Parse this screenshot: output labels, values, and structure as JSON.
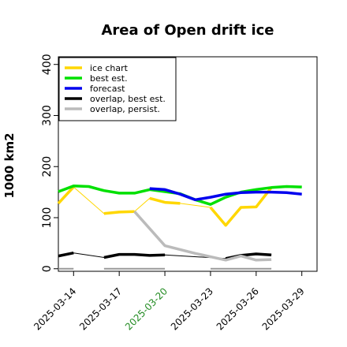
{
  "chart_data": {
    "type": "line",
    "title": "Area of Open drift ice",
    "ylabel": "1000 km2",
    "xlabel": "",
    "ylim": [
      -5,
      415
    ],
    "yticks": [
      0,
      100,
      200,
      300,
      400
    ],
    "xlim": [
      "2025-03-13",
      "2025-03-30"
    ],
    "xticks": [
      {
        "label": "2025-03-14",
        "color": "#000000"
      },
      {
        "label": "2025-03-17",
        "color": "#000000"
      },
      {
        "label": "2025-03-20",
        "color": "#228B22"
      },
      {
        "label": "2025-03-23",
        "color": "#000000"
      },
      {
        "label": "2025-03-26",
        "color": "#000000"
      },
      {
        "label": "2025-03-29",
        "color": "#000000"
      }
    ],
    "legend_position": "top-left",
    "series": [
      {
        "name": "ice chart",
        "color": "#FFD700",
        "style": "thick-segments-with-thin-connectors",
        "segments": [
          [
            [
              "2025-03-13",
              128
            ],
            [
              "2025-03-14",
              160
            ]
          ],
          [
            [
              "2025-03-16",
              108
            ],
            [
              "2025-03-17",
              111
            ],
            [
              "2025-03-18",
              112
            ]
          ],
          [
            [
              "2025-03-19",
              138
            ],
            [
              "2025-03-20",
              130
            ],
            [
              "2025-03-21",
              128
            ]
          ],
          [
            [
              "2025-03-23",
              120
            ],
            [
              "2025-03-24",
              85
            ],
            [
              "2025-03-25",
              120
            ],
            [
              "2025-03-26",
              121
            ],
            [
              "2025-03-27",
              159
            ]
          ]
        ]
      },
      {
        "name": "best est.",
        "color": "#00E000",
        "style": "thick",
        "segments": [
          [
            [
              "2025-03-13",
              151
            ],
            [
              "2025-03-14",
              162
            ],
            [
              "2025-03-15",
              161
            ],
            [
              "2025-03-16",
              153
            ],
            [
              "2025-03-17",
              148
            ],
            [
              "2025-03-18",
              148
            ],
            [
              "2025-03-19",
              155
            ],
            [
              "2025-03-20",
              151
            ],
            [
              "2025-03-21",
              147
            ],
            [
              "2025-03-22",
              135
            ],
            [
              "2025-03-23",
              126
            ],
            [
              "2025-03-24",
              140
            ],
            [
              "2025-03-25",
              150
            ],
            [
              "2025-03-26",
              155
            ],
            [
              "2025-03-27",
              159
            ],
            [
              "2025-03-28",
              161
            ],
            [
              "2025-03-29",
              160
            ]
          ]
        ]
      },
      {
        "name": "forecast",
        "color": "#0000EE",
        "style": "thick",
        "segments": [
          [
            [
              "2025-03-19",
              157
            ],
            [
              "2025-03-20",
              155
            ],
            [
              "2025-03-21",
              146
            ],
            [
              "2025-03-22",
              135
            ],
            [
              "2025-03-23",
              140
            ],
            [
              "2025-03-24",
              146
            ],
            [
              "2025-03-25",
              149
            ],
            [
              "2025-03-26",
              150
            ],
            [
              "2025-03-27",
              150
            ],
            [
              "2025-03-28",
              149
            ],
            [
              "2025-03-29",
              146
            ]
          ]
        ]
      },
      {
        "name": "overlap, best est.",
        "color": "#000000",
        "style": "thick-segments-with-thin-connectors",
        "segments": [
          [
            [
              "2025-03-13",
              25
            ],
            [
              "2025-03-14",
              31
            ]
          ],
          [
            [
              "2025-03-16",
              22
            ],
            [
              "2025-03-17",
              28
            ],
            [
              "2025-03-18",
              28
            ],
            [
              "2025-03-19",
              26
            ],
            [
              "2025-03-20",
              27
            ]
          ],
          [
            [
              "2025-03-24",
              20
            ],
            [
              "2025-03-25",
              26
            ],
            [
              "2025-03-26",
              29
            ],
            [
              "2025-03-27",
              27
            ]
          ]
        ]
      },
      {
        "name": "overlap, persist.",
        "color": "#BBBBBB",
        "style": "thick",
        "segments": [
          [
            [
              "2025-03-18",
              112
            ],
            [
              "2025-03-20",
              45
            ],
            [
              "2025-03-22",
              30
            ],
            [
              "2025-03-24",
              17
            ],
            [
              "2025-03-25",
              25
            ],
            [
              "2025-03-26",
              17
            ],
            [
              "2025-03-27",
              18
            ]
          ]
        ]
      }
    ],
    "zero_markers": [
      [
        "2025-03-13",
        "2025-03-14"
      ],
      [
        "2025-03-16",
        "2025-03-20"
      ],
      [
        "2025-03-23",
        "2025-03-27"
      ]
    ]
  }
}
